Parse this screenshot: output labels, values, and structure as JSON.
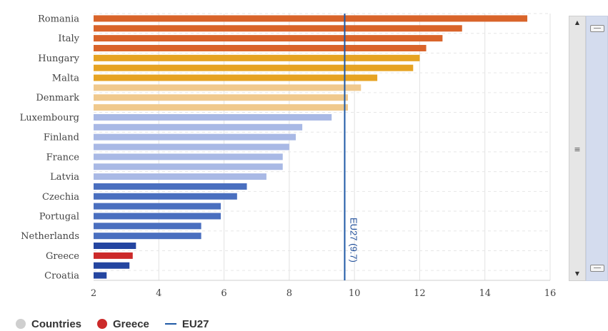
{
  "chart_data": {
    "type": "bar",
    "orientation": "horizontal",
    "categories": [
      "Romania",
      "",
      "Italy",
      "",
      "Hungary",
      "",
      "Malta",
      "",
      "Denmark",
      "",
      "Luxembourg",
      "",
      "Finland",
      "",
      "France",
      "",
      "Latvia",
      "",
      "Czechia",
      "",
      "Portugal",
      "",
      "Netherlands",
      "",
      "Greece",
      "",
      "Croatia"
    ],
    "values": [
      15.3,
      13.3,
      12.7,
      12.2,
      12.0,
      11.8,
      10.7,
      10.2,
      9.8,
      9.8,
      9.3,
      8.4,
      8.2,
      8.0,
      7.8,
      7.8,
      7.3,
      6.7,
      6.4,
      5.9,
      5.9,
      5.3,
      5.3,
      3.3,
      3.2,
      3.1,
      2.4
    ],
    "bar_colors": [
      "#d9642a",
      "#d9642a",
      "#d9642a",
      "#d9642a",
      "#e6a323",
      "#e6a323",
      "#e6a323",
      "#f0c98d",
      "#f0c98d",
      "#f0c98d",
      "#a9b9e5",
      "#a9b9e5",
      "#a9b9e5",
      "#a9b9e5",
      "#a9b9e5",
      "#a9b9e5",
      "#a9b9e5",
      "#4a6fbf",
      "#4a6fbf",
      "#4a6fbf",
      "#4a6fbf",
      "#4a6fbf",
      "#4a6fbf",
      "#2445a0",
      "#cc2a2a",
      "#2445a0",
      "#2445a0"
    ],
    "xlim": [
      2,
      16
    ],
    "xticks": [
      2,
      4,
      6,
      8,
      10,
      12,
      14,
      16
    ],
    "grid": true,
    "reference_line": {
      "value": 9.7,
      "label": "EU27 (9.7)",
      "color": "#1f5aa6"
    },
    "legend_position": "bottom-left"
  },
  "legend": {
    "items": [
      {
        "label": "Countries",
        "color": "#cfcfcf",
        "marker": "dot"
      },
      {
        "label": "Greece",
        "color": "#cc2a2a",
        "marker": "dot"
      },
      {
        "label": "EU27",
        "color": "#1f5aa6",
        "marker": "line"
      }
    ]
  },
  "scrollbar": {
    "up_arrow": "▲",
    "down_arrow": "▼",
    "grip": "≡"
  }
}
